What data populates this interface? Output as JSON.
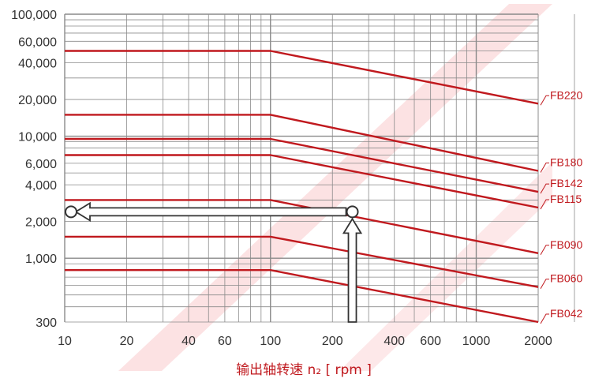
{
  "chart_data": {
    "type": "line",
    "x_scale": "log",
    "y_scale": "log",
    "xlim": [
      10,
      2000
    ],
    "ylim": [
      300,
      100000
    ],
    "x_ticks": [
      10,
      20,
      40,
      60,
      100,
      200,
      400,
      600,
      1000,
      2000
    ],
    "x_tick_labels": [
      "10",
      "20",
      "40",
      "60",
      "100",
      "200",
      "400",
      "600",
      "1000",
      "2000"
    ],
    "y_ticks": [
      300,
      1000,
      2000,
      4000,
      6000,
      10000,
      20000,
      40000,
      60000,
      100000
    ],
    "y_tick_labels": [
      "300",
      "1,000",
      "2,000",
      "4,000",
      "6,000",
      "10,000",
      "20,000",
      "40,000",
      "60,000",
      "100,000"
    ],
    "xlabel": "输出轴转速 n₂ [ rpm ]",
    "ylabel": "",
    "grid": true,
    "series": [
      {
        "name": "FB220",
        "x": [
          10,
          100,
          2000
        ],
        "y": [
          50000,
          50000,
          18500
        ]
      },
      {
        "name": "FB180",
        "x": [
          10,
          100,
          2000
        ],
        "y": [
          15000,
          15000,
          5200
        ]
      },
      {
        "name": "FB142",
        "x": [
          10,
          100,
          2000
        ],
        "y": [
          9500,
          9500,
          3500
        ]
      },
      {
        "name": "FB115",
        "x": [
          10,
          100,
          2000
        ],
        "y": [
          7000,
          7000,
          2600
        ]
      },
      {
        "name": "FB090",
        "x": [
          10,
          100,
          2000
        ],
        "y": [
          3000,
          3000,
          1100
        ]
      },
      {
        "name": "FB060",
        "x": [
          10,
          100,
          2000
        ],
        "y": [
          1500,
          1500,
          580
        ]
      },
      {
        "name": "FB042",
        "x": [
          10,
          100,
          2000
        ],
        "y": [
          800,
          800,
          300
        ]
      }
    ],
    "example_path": {
      "x": [
        250,
        250,
        10
      ],
      "y": [
        300,
        2400,
        2400
      ]
    },
    "colors": {
      "series": "#c0191e",
      "grid": "#8a8a8a",
      "arrow": "#333333",
      "watermark": "#e8202a"
    }
  }
}
